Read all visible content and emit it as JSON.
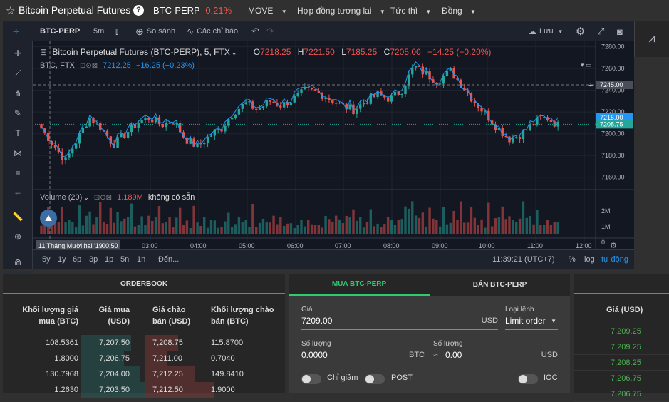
{
  "topbar": {
    "title": "Bitcoin Perpetual Futures",
    "symbol": "BTC-PERP",
    "change": "-0.21%",
    "menus": [
      "MOVE",
      "Hợp đồng tương lai",
      "Tức thì",
      "Đồng"
    ]
  },
  "chart_toolbar": {
    "symbol": "BTC-PERP",
    "interval": "5m",
    "compare": "So sánh",
    "indicators": "Các chỉ báo",
    "save": "Lưu"
  },
  "legend": {
    "title": "Bitcoin Perpetual Futures (BTC-PERP), 5, FTX",
    "o": "7218.25",
    "h": "7221.50",
    "l": "7185.25",
    "c": "7205.00",
    "chg": "−14.25 (−0.20%)",
    "sub_name": "BTC, FTX",
    "sub_value": "7212.25",
    "sub_chg": "−16.25 (−0.23%)"
  },
  "volume_legend": {
    "name": "Volume (20)",
    "value": "1.189M",
    "na": "không có sẵn"
  },
  "price_axis": [
    "7280.00",
    "7260.00",
    "7240.00",
    "7220.00",
    "7200.00",
    "7180.00",
    "7160.00"
  ],
  "price_tags": {
    "crosshair": "7245.00",
    "compare": "7215.00",
    "last": "7208.75"
  },
  "vol_axis": [
    "2M",
    "1M",
    "0"
  ],
  "time_axis": [
    "11 Tháng Mười hai '19",
    "00:50",
    "03:00",
    "04:00",
    "05:00",
    "06:00",
    "07:00",
    "08:00",
    "09:00",
    "10:00",
    "11:00",
    "12:00"
  ],
  "bottom_bar": {
    "ranges": [
      "5y",
      "1y",
      "6p",
      "3p",
      "1p",
      "5n",
      "1n"
    ],
    "goto": "Đến...",
    "clock": "11:39:21 (UTC+7)",
    "pct": "%",
    "log": "log",
    "auto": "tự động"
  },
  "orderbook": {
    "title": "ORDERBOOK",
    "headers": [
      "Khối lượng giá mua (BTC)",
      "Giá mua (USD)",
      "Giá chào bán (USD)",
      "Khối lượng chào bán (BTC)"
    ],
    "rows": [
      [
        "108.5361",
        "7,207.50",
        "7,208.75",
        "115.8700"
      ],
      [
        "1.8000",
        "7,206.75",
        "7,211.00",
        "0.7040"
      ],
      [
        "130.7968",
        "7,204.00",
        "7,212.25",
        "149.8410"
      ],
      [
        "1.2630",
        "7,203.50",
        "7,212.50",
        "1.9000"
      ]
    ]
  },
  "order_form": {
    "tab_buy": "MUA BTC-PERP",
    "tab_sell": "BÁN BTC-PERP",
    "price_label": "Giá",
    "price_value": "7209.00",
    "price_unit": "USD",
    "type_label": "Loại lệnh",
    "type_value": "Limit order",
    "qty_label": "Số lượng",
    "qty_value": "0.0000",
    "qty_unit": "BTC",
    "qty2_label": "Số lượng",
    "qty2_approx": "≈",
    "qty2_value": "0.00",
    "qty2_unit": "USD",
    "reduce": "Chỉ giảm",
    "post": "POST",
    "ioc": "IOC"
  },
  "trades": {
    "header": "Giá (USD)",
    "prices": [
      "7,209.25",
      "7,209.25",
      "7,208.25",
      "7,206.75",
      "7,206.75"
    ]
  },
  "colors": {
    "up": "#26a69a",
    "down": "#ef5350",
    "accent": "#2196f3",
    "buy_tab": "#2ecc71"
  }
}
